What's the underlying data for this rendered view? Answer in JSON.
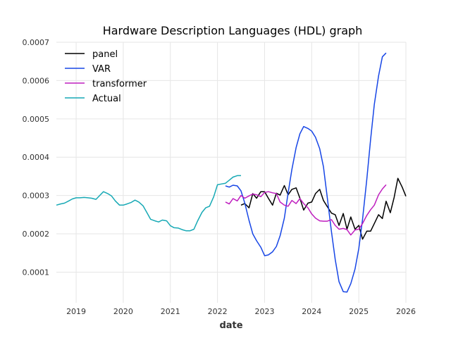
{
  "chart_data": {
    "type": "line",
    "title": "Hardware Description Languages (HDL) graph",
    "xlabel": "date",
    "ylabel": "",
    "xlim": [
      2018.58,
      2026.0
    ],
    "ylim": [
      2e-05,
      0.0007
    ],
    "x_ticks": [
      2019,
      2020,
      2021,
      2022,
      2023,
      2024,
      2025,
      2026
    ],
    "x_tick_labels": [
      "2019",
      "2020",
      "2021",
      "2022",
      "2023",
      "2024",
      "2025",
      "2026"
    ],
    "y_ticks": [
      0.0001,
      0.0002,
      0.0003,
      0.0004,
      0.0005,
      0.0006,
      0.0007
    ],
    "y_tick_labels": [
      "0.0001",
      "0.0002",
      "0.0003",
      "0.0004",
      "0.0005",
      "0.0006",
      "0.0007"
    ],
    "grid": true,
    "legend_position": "top-left",
    "series": [
      {
        "name": "panel",
        "color": "#000000",
        "x": [
          2022.5,
          2022.58,
          2022.67,
          2022.75,
          2022.83,
          2022.92,
          2023.0,
          2023.08,
          2023.17,
          2023.25,
          2023.33,
          2023.42,
          2023.5,
          2023.58,
          2023.67,
          2023.75,
          2023.83,
          2023.92,
          2024.0,
          2024.08,
          2024.17,
          2024.25,
          2024.33,
          2024.42,
          2024.5,
          2024.58,
          2024.67,
          2024.75,
          2024.83,
          2024.92,
          2025.0,
          2025.08,
          2025.17,
          2025.25,
          2025.33,
          2025.42,
          2025.5,
          2025.58,
          2025.67,
          2025.75,
          2025.83,
          2025.92,
          2026.0
        ],
        "values": [
          0.000275,
          0.000279,
          0.000268,
          0.000305,
          0.000293,
          0.00031,
          0.00031,
          0.000293,
          0.000275,
          0.000306,
          0.000301,
          0.000326,
          0.000302,
          0.000316,
          0.00032,
          0.000293,
          0.000262,
          0.00028,
          0.000283,
          0.000305,
          0.000316,
          0.000287,
          0.000271,
          0.000254,
          0.00025,
          0.000222,
          0.000253,
          0.000212,
          0.000244,
          0.000212,
          0.000222,
          0.000186,
          0.000207,
          0.000207,
          0.000227,
          0.00025,
          0.00024,
          0.000285,
          0.000255,
          0.000295,
          0.000345,
          0.000322,
          0.000298
        ]
      },
      {
        "name": "VAR",
        "color": "#1746e6",
        "x": [
          2022.17,
          2022.25,
          2022.33,
          2022.42,
          2022.5,
          2022.58,
          2022.67,
          2022.75,
          2022.83,
          2022.92,
          2023.0,
          2023.08,
          2023.17,
          2023.25,
          2023.33,
          2023.42,
          2023.5,
          2023.58,
          2023.67,
          2023.75,
          2023.83,
          2023.92,
          2024.0,
          2024.08,
          2024.17,
          2024.25,
          2024.33,
          2024.42,
          2024.5,
          2024.58,
          2024.67,
          2024.75,
          2024.83,
          2024.92,
          2025.0,
          2025.08,
          2025.17,
          2025.25,
          2025.33,
          2025.42,
          2025.5,
          2025.58
        ],
        "values": [
          0.000325,
          0.000322,
          0.000327,
          0.000325,
          0.000312,
          0.00028,
          0.000235,
          0.0002,
          0.000182,
          0.000165,
          0.000143,
          0.000145,
          0.000153,
          0.000167,
          0.000195,
          0.000241,
          0.000307,
          0.000368,
          0.000425,
          0.000461,
          0.00048,
          0.000475,
          0.000468,
          0.000452,
          0.000422,
          0.000375,
          0.000295,
          0.000205,
          0.000133,
          7.5e-05,
          4.9e-05,
          4.8e-05,
          7e-05,
          0.000108,
          0.000162,
          0.000238,
          0.000342,
          0.000446,
          0.000538,
          0.000612,
          0.000662,
          0.000672
        ]
      },
      {
        "name": "transformer",
        "color": "#bf1fbf",
        "x": [
          2022.17,
          2022.25,
          2022.33,
          2022.42,
          2022.5,
          2022.58,
          2022.67,
          2022.75,
          2022.83,
          2022.92,
          2023.0,
          2023.08,
          2023.17,
          2023.25,
          2023.33,
          2023.42,
          2023.5,
          2023.58,
          2023.67,
          2023.75,
          2023.83,
          2023.92,
          2024.0,
          2024.08,
          2024.17,
          2024.25,
          2024.33,
          2024.42,
          2024.5,
          2024.58,
          2024.67,
          2024.75,
          2024.83,
          2024.92,
          2025.0,
          2025.08,
          2025.17,
          2025.25,
          2025.33,
          2025.42,
          2025.5,
          2025.58
        ],
        "values": [
          0.000283,
          0.000278,
          0.000292,
          0.000286,
          0.0003,
          0.000293,
          0.000299,
          0.000304,
          0.000302,
          0.000297,
          0.000308,
          0.00031,
          0.000307,
          0.000305,
          0.000283,
          0.000275,
          0.000272,
          0.000287,
          0.000279,
          0.000292,
          0.000279,
          0.000268,
          0.000252,
          0.000241,
          0.000234,
          0.000233,
          0.000233,
          0.000237,
          0.000222,
          0.000212,
          0.000214,
          0.000211,
          0.000197,
          0.00021,
          0.000212,
          0.000227,
          0.000248,
          0.000263,
          0.000275,
          0.000302,
          0.000317,
          0.000328
        ]
      },
      {
        "name": "Actual",
        "color": "#17a9b5",
        "x": [
          2018.58,
          2018.67,
          2018.75,
          2018.83,
          2018.92,
          2019.0,
          2019.08,
          2019.17,
          2019.25,
          2019.33,
          2019.42,
          2019.5,
          2019.58,
          2019.67,
          2019.75,
          2019.83,
          2019.92,
          2020.0,
          2020.08,
          2020.17,
          2020.25,
          2020.33,
          2020.42,
          2020.5,
          2020.58,
          2020.67,
          2020.75,
          2020.83,
          2020.92,
          2021.0,
          2021.08,
          2021.17,
          2021.25,
          2021.33,
          2021.42,
          2021.5,
          2021.58,
          2021.67,
          2021.75,
          2021.83,
          2021.92,
          2022.0,
          2022.08,
          2022.17,
          2022.25,
          2022.33,
          2022.42,
          2022.5
        ],
        "values": [
          0.000275,
          0.000278,
          0.00028,
          0.000285,
          0.000291,
          0.000294,
          0.000294,
          0.000295,
          0.000294,
          0.000293,
          0.00029,
          0.0003,
          0.00031,
          0.000305,
          0.000299,
          0.000286,
          0.000275,
          0.000275,
          0.000278,
          0.000282,
          0.000288,
          0.000283,
          0.000273,
          0.000256,
          0.000238,
          0.000234,
          0.000231,
          0.000236,
          0.000234,
          0.000221,
          0.000216,
          0.000215,
          0.000211,
          0.000208,
          0.000208,
          0.000212,
          0.000234,
          0.000256,
          0.000268,
          0.000272,
          0.000297,
          0.000328,
          0.00033,
          0.000332,
          0.00034,
          0.000348,
          0.000352,
          0.000352
        ]
      }
    ]
  }
}
